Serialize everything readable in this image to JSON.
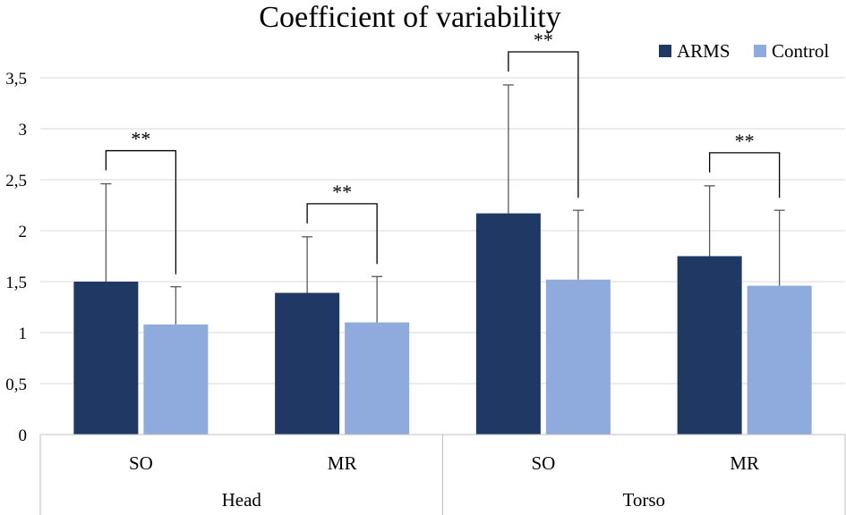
{
  "chart_data": {
    "type": "bar",
    "title": "Coefficient of variability",
    "ylim": [
      0,
      3.5
    ],
    "y_ticks": [
      "0",
      "0,5",
      "1",
      "1,5",
      "2",
      "2,5",
      "3",
      "3,5"
    ],
    "y_tick_values": [
      0,
      0.5,
      1,
      1.5,
      2,
      2.5,
      3,
      3.5
    ],
    "groups": [
      {
        "label": "Head",
        "categories": [
          "SO",
          "MR"
        ]
      },
      {
        "label": "Torso",
        "categories": [
          "SO",
          "MR"
        ]
      }
    ],
    "categories": [
      "SO",
      "MR",
      "SO",
      "MR"
    ],
    "series": [
      {
        "name": "ARMS",
        "color": "#203864",
        "values": [
          1.5,
          1.39,
          2.17,
          1.75
        ],
        "error": [
          0.96,
          0.55,
          1.26,
          0.69
        ]
      },
      {
        "name": "Control",
        "color": "#8faadc",
        "values": [
          1.08,
          1.1,
          1.52,
          1.46
        ],
        "error": [
          0.37,
          0.45,
          0.68,
          0.74
        ]
      }
    ],
    "significance": [
      {
        "category_index": 0,
        "label": "**"
      },
      {
        "category_index": 1,
        "label": "**"
      },
      {
        "category_index": 2,
        "label": "**"
      },
      {
        "category_index": 3,
        "label": "**"
      }
    ],
    "legend": {
      "position": "top-right"
    },
    "grid": true
  }
}
